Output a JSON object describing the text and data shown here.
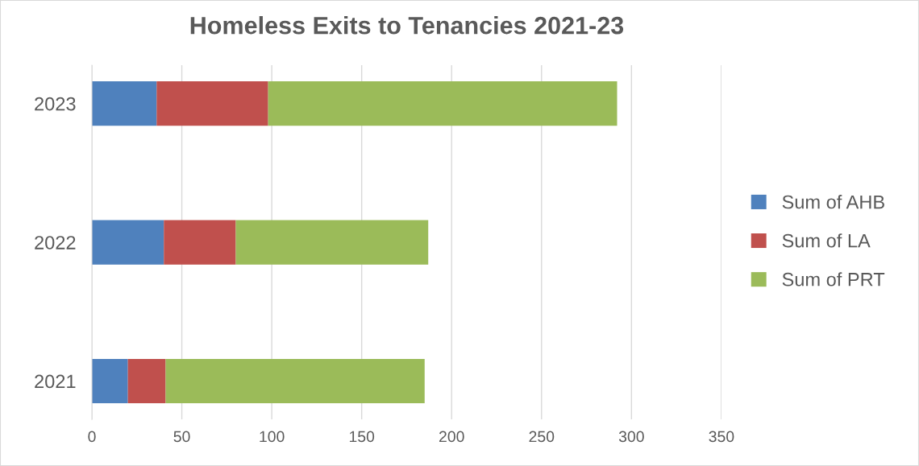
{
  "chart_data": {
    "type": "bar",
    "orientation": "horizontal",
    "stacked": true,
    "title": "Homeless Exits to Tenancies 2021-23",
    "categories": [
      "2023",
      "2022",
      "2021"
    ],
    "series": [
      {
        "name": "Sum of AHB",
        "color": "#4f81bd",
        "values": [
          36,
          40,
          20
        ]
      },
      {
        "name": "Sum of LA",
        "color": "#c0504d",
        "values": [
          62,
          40,
          21
        ]
      },
      {
        "name": "Sum of PRT",
        "color": "#9bbb59",
        "values": [
          194,
          107,
          144
        ]
      }
    ],
    "xlim": [
      0,
      350
    ],
    "xticks": [
      0,
      50,
      100,
      150,
      200,
      250,
      300,
      350
    ],
    "grid": "x",
    "legend": "right"
  }
}
